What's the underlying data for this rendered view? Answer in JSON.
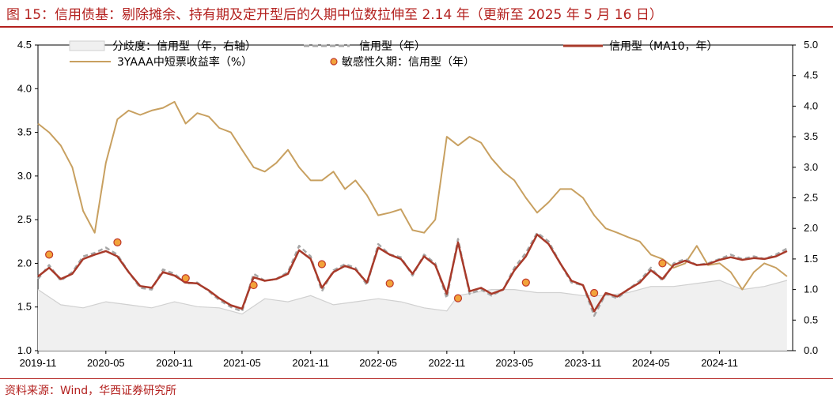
{
  "title": "图 15：信用债基：剔除摊余、持有期及定开型后的久期中位数拉伸至 2.14 年（更新至 2025 年 5 月 16 日）",
  "source": "资料来源：Wind，华西证券研究所",
  "chart_data": {
    "type": "line",
    "x_tick_labels": [
      "2019-11",
      "2020-05",
      "2020-11",
      "2021-05",
      "2021-11",
      "2022-05",
      "2022-11",
      "2023-05",
      "2023-11",
      "2024-05",
      "2024-11"
    ],
    "x_range": [
      "2019-11-01",
      "2025-05-16"
    ],
    "y_left": {
      "ylim": [
        1.0,
        4.5
      ],
      "ticks": [
        "1.0",
        "1.5",
        "2.0",
        "2.5",
        "3.0",
        "3.5",
        "4.0",
        "4.5"
      ]
    },
    "y_right": {
      "ylim": [
        0.0,
        5.0
      ],
      "ticks": [
        "0.0",
        "0.5",
        "1.0",
        "1.5",
        "2.0",
        "2.5",
        "3.0",
        "3.5",
        "4.0",
        "4.5",
        "5.0"
      ]
    },
    "legend_placement": "top",
    "colors": {
      "dispersion": "#d0d0d0",
      "credit": "#a6a6a6",
      "ma10": "#a83a2a",
      "yield": "#c8a060",
      "point": "#f2a33a",
      "title": "#b3201e"
    },
    "series": [
      {
        "key": "dispersion",
        "name": "分歧度：信用型（年，右轴）",
        "style": "area",
        "axis": "right",
        "x": [
          "2019-11",
          "2020-01",
          "2020-03",
          "2020-05",
          "2020-07",
          "2020-09",
          "2020-11",
          "2021-01",
          "2021-03",
          "2021-05",
          "2021-07",
          "2021-09",
          "2021-11",
          "2022-01",
          "2022-03",
          "2022-05",
          "2022-07",
          "2022-09",
          "2022-11",
          "2022-12",
          "2023-03",
          "2023-05",
          "2023-07",
          "2023-09",
          "2023-11",
          "2024-01",
          "2024-03",
          "2024-05",
          "2024-07",
          "2024-09",
          "2024-11",
          "2025-01",
          "2025-03",
          "2025-05"
        ],
        "values": [
          1.0,
          0.75,
          0.7,
          0.8,
          0.75,
          0.7,
          0.8,
          0.72,
          0.7,
          0.6,
          0.85,
          0.8,
          0.9,
          0.75,
          0.8,
          0.85,
          0.8,
          0.7,
          0.65,
          0.9,
          1.0,
          1.0,
          0.95,
          0.95,
          0.9,
          0.9,
          0.95,
          1.05,
          1.05,
          1.1,
          1.15,
          1.0,
          1.05,
          1.15
        ]
      },
      {
        "key": "credit",
        "name": "信用型（年）",
        "style": "dashed",
        "axis": "left",
        "x": [
          "2019-11",
          "2019-12",
          "2020-01",
          "2020-02",
          "2020-03",
          "2020-04",
          "2020-05",
          "2020-06",
          "2020-07",
          "2020-08",
          "2020-09",
          "2020-10",
          "2020-11",
          "2020-12",
          "2021-01",
          "2021-02",
          "2021-03",
          "2021-04",
          "2021-05",
          "2021-06",
          "2021-07",
          "2021-08",
          "2021-09",
          "2021-10",
          "2021-11",
          "2021-12",
          "2022-01",
          "2022-02",
          "2022-03",
          "2022-04",
          "2022-05",
          "2022-06",
          "2022-07",
          "2022-08",
          "2022-09",
          "2022-10",
          "2022-11",
          "2022-12",
          "2023-01",
          "2023-02",
          "2023-03",
          "2023-04",
          "2023-05",
          "2023-06",
          "2023-07",
          "2023-08",
          "2023-09",
          "2023-10",
          "2023-11",
          "2023-12",
          "2024-01",
          "2024-02",
          "2024-03",
          "2024-04",
          "2024-05",
          "2024-06",
          "2024-07",
          "2024-08",
          "2024-09",
          "2024-10",
          "2024-11",
          "2024-12",
          "2025-01",
          "2025-02",
          "2025-03",
          "2025-04",
          "2025-05"
        ],
        "values": [
          1.82,
          1.98,
          1.8,
          1.9,
          2.08,
          2.12,
          2.18,
          2.1,
          1.9,
          1.72,
          1.7,
          1.93,
          1.88,
          1.77,
          1.78,
          1.68,
          1.58,
          1.5,
          1.45,
          1.88,
          1.8,
          1.82,
          1.9,
          2.2,
          2.08,
          1.68,
          1.92,
          1.99,
          1.95,
          1.75,
          2.22,
          2.1,
          2.07,
          1.86,
          2.1,
          2.0,
          1.6,
          2.28,
          1.65,
          1.7,
          1.63,
          1.7,
          1.95,
          2.12,
          2.35,
          2.25,
          2.0,
          1.78,
          1.75,
          1.4,
          1.65,
          1.6,
          1.7,
          1.8,
          1.95,
          1.8,
          2.0,
          2.05,
          1.98,
          2.0,
          2.05,
          2.1,
          2.05,
          2.08,
          2.05,
          2.1,
          2.17
        ]
      },
      {
        "key": "ma10",
        "name": "信用型（MA10，年）",
        "style": "solid-thick",
        "axis": "left",
        "x": [
          "2019-11",
          "2019-12",
          "2020-01",
          "2020-02",
          "2020-03",
          "2020-04",
          "2020-05",
          "2020-06",
          "2020-07",
          "2020-08",
          "2020-09",
          "2020-10",
          "2020-11",
          "2020-12",
          "2021-01",
          "2021-02",
          "2021-03",
          "2021-04",
          "2021-05",
          "2021-06",
          "2021-07",
          "2021-08",
          "2021-09",
          "2021-10",
          "2021-11",
          "2021-12",
          "2022-01",
          "2022-02",
          "2022-03",
          "2022-04",
          "2022-05",
          "2022-06",
          "2022-07",
          "2022-08",
          "2022-09",
          "2022-10",
          "2022-11",
          "2022-12",
          "2023-01",
          "2023-02",
          "2023-03",
          "2023-04",
          "2023-05",
          "2023-06",
          "2023-07",
          "2023-08",
          "2023-09",
          "2023-10",
          "2023-11",
          "2023-12",
          "2024-01",
          "2024-02",
          "2024-03",
          "2024-04",
          "2024-05",
          "2024-06",
          "2024-07",
          "2024-08",
          "2024-09",
          "2024-10",
          "2024-11",
          "2024-12",
          "2025-01",
          "2025-02",
          "2025-03",
          "2025-04",
          "2025-05"
        ],
        "values": [
          1.85,
          1.95,
          1.82,
          1.88,
          2.05,
          2.1,
          2.14,
          2.08,
          1.9,
          1.74,
          1.72,
          1.9,
          1.86,
          1.78,
          1.77,
          1.69,
          1.6,
          1.52,
          1.48,
          1.84,
          1.8,
          1.82,
          1.88,
          2.15,
          2.05,
          1.72,
          1.9,
          1.97,
          1.93,
          1.78,
          2.18,
          2.1,
          2.05,
          1.88,
          2.08,
          1.98,
          1.65,
          2.24,
          1.68,
          1.72,
          1.65,
          1.7,
          1.92,
          2.08,
          2.33,
          2.22,
          2.0,
          1.8,
          1.75,
          1.45,
          1.66,
          1.62,
          1.7,
          1.78,
          1.92,
          1.82,
          1.98,
          2.03,
          1.98,
          1.99,
          2.04,
          2.07,
          2.04,
          2.06,
          2.05,
          2.08,
          2.14
        ]
      },
      {
        "key": "yield",
        "name": "3YAAA中短票收益率（%）",
        "style": "solid",
        "axis": "left",
        "x": [
          "2019-11",
          "2019-12",
          "2020-01",
          "2020-02",
          "2020-03",
          "2020-04",
          "2020-05",
          "2020-06",
          "2020-07",
          "2020-08",
          "2020-09",
          "2020-10",
          "2020-11",
          "2020-12",
          "2021-01",
          "2021-02",
          "2021-03",
          "2021-04",
          "2021-05",
          "2021-06",
          "2021-07",
          "2021-08",
          "2021-09",
          "2021-10",
          "2021-11",
          "2021-12",
          "2022-01",
          "2022-02",
          "2022-03",
          "2022-04",
          "2022-05",
          "2022-06",
          "2022-07",
          "2022-08",
          "2022-09",
          "2022-10",
          "2022-11",
          "2022-12",
          "2023-01",
          "2023-02",
          "2023-03",
          "2023-04",
          "2023-05",
          "2023-06",
          "2023-07",
          "2023-08",
          "2023-09",
          "2023-10",
          "2023-11",
          "2023-12",
          "2024-01",
          "2024-02",
          "2024-03",
          "2024-04",
          "2024-05",
          "2024-06",
          "2024-07",
          "2024-08",
          "2024-09",
          "2024-10",
          "2024-11",
          "2024-12",
          "2025-01",
          "2025-02",
          "2025-03",
          "2025-04",
          "2025-05"
        ],
        "values": [
          3.6,
          3.5,
          3.35,
          3.1,
          2.6,
          2.35,
          3.15,
          3.65,
          3.75,
          3.7,
          3.75,
          3.78,
          3.85,
          3.6,
          3.72,
          3.68,
          3.55,
          3.5,
          3.3,
          3.1,
          3.05,
          3.15,
          3.3,
          3.1,
          2.95,
          2.95,
          3.05,
          2.85,
          2.95,
          2.78,
          2.55,
          2.58,
          2.62,
          2.38,
          2.35,
          2.5,
          3.45,
          3.35,
          3.45,
          3.38,
          3.2,
          3.05,
          2.95,
          2.75,
          2.58,
          2.7,
          2.85,
          2.85,
          2.75,
          2.55,
          2.4,
          2.35,
          2.3,
          2.25,
          2.1,
          2.05,
          1.95,
          2.0,
          2.2,
          1.98,
          2.0,
          1.9,
          1.7,
          1.9,
          2.0,
          1.95,
          1.85
        ]
      },
      {
        "key": "points",
        "name": "敏感性久期：信用型（年）",
        "style": "points",
        "axis": "left",
        "x": [
          "2019-12",
          "2020-06",
          "2020-12",
          "2021-06",
          "2021-12",
          "2022-06",
          "2022-12",
          "2023-06",
          "2023-12",
          "2024-06"
        ],
        "values": [
          2.1,
          2.24,
          1.83,
          1.75,
          1.99,
          1.77,
          1.6,
          1.78,
          1.66,
          2.0
        ]
      }
    ]
  }
}
